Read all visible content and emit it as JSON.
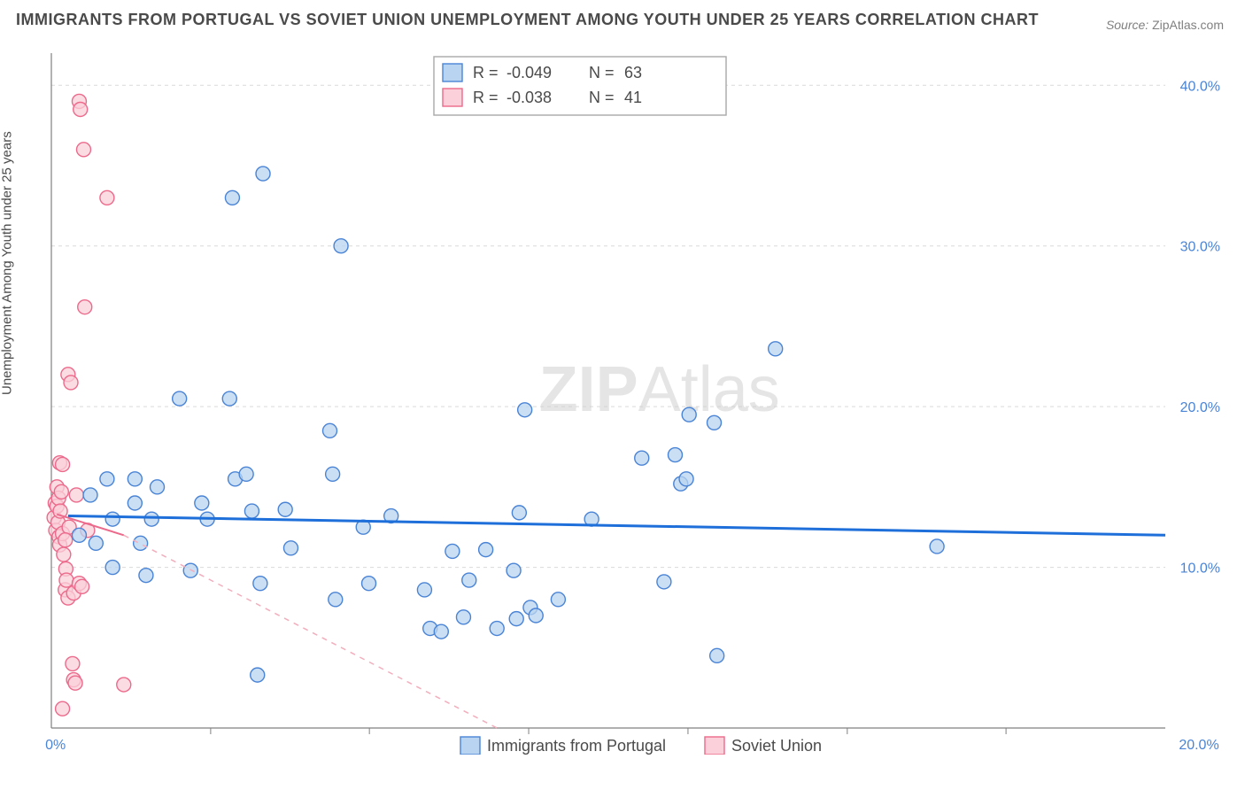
{
  "title": "IMMIGRANTS FROM PORTUGAL VS SOVIET UNION UNEMPLOYMENT AMONG YOUTH UNDER 25 YEARS CORRELATION CHART",
  "source_label": "Source:",
  "source_value": "ZipAtlas.com",
  "yaxis_label": "Unemployment Among Youth under 25 years",
  "watermark_bold": "ZIP",
  "watermark_light": "Atlas",
  "chart": {
    "type": "scatter",
    "xlim": [
      0,
      20
    ],
    "ylim": [
      0,
      42
    ],
    "xtick_values": [
      0,
      20
    ],
    "xtick_labels": [
      "0.0%",
      "20.0%"
    ],
    "xtick_minor": [
      2.86,
      5.71,
      8.57,
      11.43,
      14.29,
      17.14
    ],
    "ytick_values": [
      10,
      20,
      30,
      40
    ],
    "ytick_labels": [
      "10.0%",
      "20.0%",
      "30.0%",
      "40.0%"
    ],
    "background_color": "#ffffff",
    "grid_color": "#d9d9d9",
    "marker_radius": 8,
    "series": [
      {
        "name": "Immigrants from Portugal",
        "color_fill": "#b9d4f0",
        "color_stroke": "#4a84d6",
        "R": "-0.049",
        "N": "63",
        "trend": {
          "x1": 0.3,
          "y1": 13.2,
          "x2": 20,
          "y2": 12.0,
          "style": "solid"
        },
        "points": [
          [
            0.5,
            12.0
          ],
          [
            0.7,
            14.5
          ],
          [
            0.8,
            11.5
          ],
          [
            1.0,
            15.5
          ],
          [
            1.1,
            13.0
          ],
          [
            1.1,
            10.0
          ],
          [
            1.5,
            14.0
          ],
          [
            1.5,
            15.5
          ],
          [
            1.6,
            11.5
          ],
          [
            1.7,
            9.5
          ],
          [
            1.8,
            13.0
          ],
          [
            1.9,
            15.0
          ],
          [
            2.3,
            20.5
          ],
          [
            2.5,
            9.8
          ],
          [
            2.7,
            14.0
          ],
          [
            2.8,
            13.0
          ],
          [
            3.2,
            20.5
          ],
          [
            3.25,
            33.0
          ],
          [
            3.3,
            15.5
          ],
          [
            3.5,
            15.8
          ],
          [
            3.6,
            13.5
          ],
          [
            3.7,
            3.3
          ],
          [
            3.75,
            9.0
          ],
          [
            3.8,
            34.5
          ],
          [
            4.2,
            13.6
          ],
          [
            4.3,
            11.2
          ],
          [
            5.0,
            18.5
          ],
          [
            5.05,
            15.8
          ],
          [
            5.1,
            8.0
          ],
          [
            5.2,
            30.0
          ],
          [
            5.6,
            12.5
          ],
          [
            5.7,
            9.0
          ],
          [
            6.1,
            13.2
          ],
          [
            6.7,
            8.6
          ],
          [
            6.8,
            6.2
          ],
          [
            7.0,
            6.0
          ],
          [
            7.2,
            11.0
          ],
          [
            7.4,
            6.9
          ],
          [
            7.5,
            9.2
          ],
          [
            7.8,
            11.1
          ],
          [
            8.0,
            6.2
          ],
          [
            8.3,
            9.8
          ],
          [
            8.35,
            6.8
          ],
          [
            8.4,
            13.4
          ],
          [
            8.5,
            19.8
          ],
          [
            8.6,
            7.5
          ],
          [
            8.7,
            7.0
          ],
          [
            9.1,
            8.0
          ],
          [
            9.7,
            13.0
          ],
          [
            10.6,
            16.8
          ],
          [
            11.0,
            9.1
          ],
          [
            11.2,
            17.0
          ],
          [
            11.3,
            15.2
          ],
          [
            11.4,
            15.5
          ],
          [
            11.45,
            19.5
          ],
          [
            11.9,
            19.0
          ],
          [
            11.95,
            4.5
          ],
          [
            13.0,
            23.6
          ],
          [
            15.9,
            11.3
          ]
        ]
      },
      {
        "name": "Soviet Union",
        "color_fill": "#fbd0da",
        "color_stroke": "#ec6a8b",
        "R": "-0.038",
        "N": "41",
        "trend_solid": {
          "x1": 0.1,
          "y1": 13.3,
          "x2": 1.3,
          "y2": 12.0
        },
        "trend_dash": {
          "x1": 1.3,
          "y1": 12.0,
          "x2": 8.0,
          "y2": 0.0
        },
        "points": [
          [
            0.05,
            13.1
          ],
          [
            0.07,
            14.0
          ],
          [
            0.08,
            12.3
          ],
          [
            0.1,
            13.8
          ],
          [
            0.1,
            15.0
          ],
          [
            0.12,
            12.8
          ],
          [
            0.13,
            14.3
          ],
          [
            0.14,
            11.9
          ],
          [
            0.15,
            11.4
          ],
          [
            0.15,
            16.5
          ],
          [
            0.16,
            13.5
          ],
          [
            0.18,
            14.7
          ],
          [
            0.2,
            16.4
          ],
          [
            0.2,
            12.1
          ],
          [
            0.22,
            10.8
          ],
          [
            0.25,
            8.6
          ],
          [
            0.26,
            9.9
          ],
          [
            0.27,
            9.2
          ],
          [
            0.3,
            8.1
          ],
          [
            0.3,
            22.0
          ],
          [
            0.32,
            12.5
          ],
          [
            0.35,
            21.5
          ],
          [
            0.38,
            4.0
          ],
          [
            0.4,
            3.0
          ],
          [
            0.4,
            8.4
          ],
          [
            0.43,
            2.8
          ],
          [
            0.45,
            14.5
          ],
          [
            0.5,
            9.0
          ],
          [
            0.5,
            39.0
          ],
          [
            0.52,
            38.5
          ],
          [
            0.55,
            8.8
          ],
          [
            0.58,
            36.0
          ],
          [
            0.6,
            26.2
          ],
          [
            0.65,
            12.3
          ],
          [
            1.0,
            33.0
          ],
          [
            1.3,
            2.7
          ],
          [
            0.2,
            1.2
          ],
          [
            0.25,
            11.7
          ]
        ]
      }
    ]
  },
  "legend_top": {
    "rows": [
      {
        "swatch_fill": "#b9d4f0",
        "swatch_stroke": "#4a84d6",
        "R_label": "R =",
        "R_val": "-0.049",
        "N_label": "N =",
        "N_val": "63"
      },
      {
        "swatch_fill": "#fbd0da",
        "swatch_stroke": "#ec6a8b",
        "R_label": "R =",
        "R_val": "-0.038",
        "N_label": "N =",
        "N_val": "41"
      }
    ]
  },
  "legend_bottom": {
    "items": [
      {
        "swatch_fill": "#b9d4f0",
        "swatch_stroke": "#4a84d6",
        "label": "Immigrants from Portugal"
      },
      {
        "swatch_fill": "#fbd0da",
        "swatch_stroke": "#ec6a8b",
        "label": "Soviet Union"
      }
    ]
  }
}
